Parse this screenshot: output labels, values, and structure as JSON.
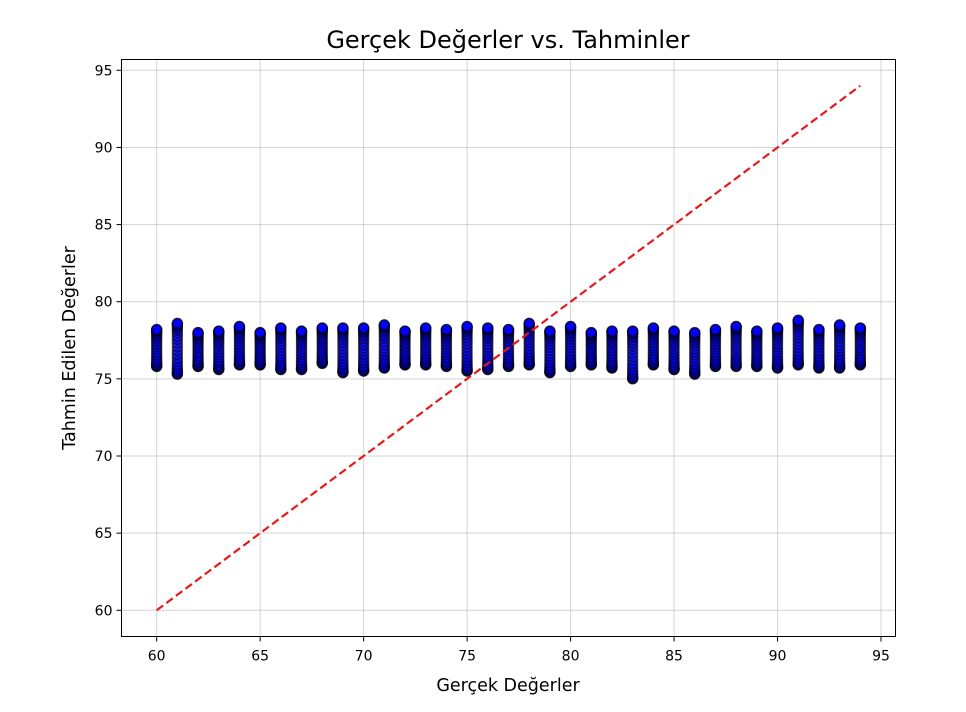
{
  "chart_data": {
    "type": "scatter",
    "title": "Gerçek Değerler vs. Tahminler",
    "xlabel": "Gerçek Değerler",
    "ylabel": "Tahmin Edilen Değerler",
    "xlim": [
      58.3,
      95.7
    ],
    "ylim": [
      58.3,
      95.7
    ],
    "xticks": [
      60,
      65,
      70,
      75,
      80,
      85,
      90,
      95
    ],
    "yticks": [
      60,
      65,
      70,
      75,
      80,
      85,
      90,
      95
    ],
    "grid": true,
    "point_color": "#0000ff",
    "line_color": "#e41a1c",
    "reference_line": {
      "style": "dashed",
      "x": [
        60,
        94
      ],
      "y": [
        60,
        94
      ]
    },
    "x_values": [
      60,
      61,
      62,
      63,
      64,
      65,
      66,
      67,
      68,
      69,
      70,
      71,
      72,
      73,
      74,
      75,
      76,
      77,
      78,
      79,
      80,
      81,
      82,
      83,
      84,
      85,
      86,
      87,
      88,
      89,
      90,
      91,
      92,
      93,
      94
    ],
    "y_ranges": [
      [
        75.8,
        78.2
      ],
      [
        75.3,
        78.6
      ],
      [
        75.8,
        78.0
      ],
      [
        75.6,
        78.1
      ],
      [
        75.9,
        78.4
      ],
      [
        75.9,
        78.0
      ],
      [
        75.6,
        78.3
      ],
      [
        75.6,
        78.1
      ],
      [
        76.0,
        78.3
      ],
      [
        75.4,
        78.3
      ],
      [
        75.5,
        78.3
      ],
      [
        75.7,
        78.5
      ],
      [
        75.9,
        78.1
      ],
      [
        75.9,
        78.3
      ],
      [
        75.8,
        78.2
      ],
      [
        75.5,
        78.4
      ],
      [
        75.6,
        78.3
      ],
      [
        75.8,
        78.2
      ],
      [
        75.9,
        78.6
      ],
      [
        75.4,
        78.1
      ],
      [
        75.8,
        78.4
      ],
      [
        75.9,
        78.0
      ],
      [
        75.7,
        78.1
      ],
      [
        75.0,
        78.1
      ],
      [
        75.9,
        78.3
      ],
      [
        75.6,
        78.1
      ],
      [
        75.3,
        78.0
      ],
      [
        75.8,
        78.2
      ],
      [
        75.8,
        78.4
      ],
      [
        75.8,
        78.1
      ],
      [
        75.7,
        78.3
      ],
      [
        75.9,
        78.8
      ],
      [
        75.7,
        78.2
      ],
      [
        75.7,
        78.5
      ],
      [
        75.9,
        78.3
      ]
    ],
    "points_per_column": 22
  }
}
